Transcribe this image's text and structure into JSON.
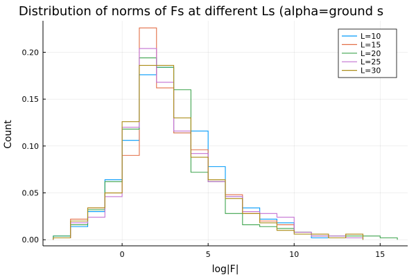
{
  "chart_data": {
    "type": "line",
    "subtype": "step-histogram",
    "title": "Distribution of norms of Fs at different Ls (alpha=ground s",
    "xlabel": "log|F|",
    "ylabel": "Count",
    "xlim": [
      -4.6,
      16.6
    ],
    "ylim": [
      -0.0065,
      0.2336
    ],
    "xticks": [
      0,
      5,
      10,
      15
    ],
    "xtick_labels": [
      "0",
      "5",
      "10",
      "15"
    ],
    "yticks": [
      0.0,
      0.05,
      0.1,
      0.15,
      0.2
    ],
    "ytick_labels": [
      "0.00",
      "0.05",
      "0.10",
      "0.15",
      "0.20"
    ],
    "grid": true,
    "legend_position": "top-right",
    "series": [
      {
        "name": "L=10",
        "color": "#009AFA",
        "x_start": -4,
        "bin_width": 1,
        "values": [
          0.004,
          0.014,
          0.03,
          0.064,
          0.106,
          0.176,
          0.184,
          0.114,
          0.116,
          0.078,
          0.046,
          0.034,
          0.022,
          0.018,
          0.008,
          0.002,
          0.002,
          0.002
        ]
      },
      {
        "name": "L=15",
        "color": "#E36F47",
        "x_start": -4,
        "bin_width": 1,
        "values": [
          0.002,
          0.022,
          0.034,
          0.05,
          0.09,
          0.226,
          0.162,
          0.114,
          0.096,
          0.064,
          0.048,
          0.028,
          0.02,
          0.016,
          0.008,
          0.006,
          0.002,
          0.006
        ]
      },
      {
        "name": "L=20",
        "color": "#3EA44E",
        "x_start": -4,
        "bin_width": 1,
        "values": [
          0.004,
          0.016,
          0.032,
          0.062,
          0.118,
          0.194,
          0.184,
          0.16,
          0.072,
          0.062,
          0.028,
          0.016,
          0.014,
          0.012,
          0.008,
          0.004,
          0.004,
          0.004,
          0.004,
          0.002
        ]
      },
      {
        "name": "L=25",
        "color": "#C371D2",
        "x_start": -4,
        "bin_width": 1,
        "values": [
          0.002,
          0.018,
          0.024,
          0.046,
          0.12,
          0.204,
          0.168,
          0.116,
          0.092,
          0.062,
          0.046,
          0.03,
          0.028,
          0.024,
          0.008,
          0.004,
          0.004,
          0.002
        ]
      },
      {
        "name": "L=30",
        "color": "#AC8D18",
        "x_start": -4,
        "bin_width": 1,
        "values": [
          0.002,
          0.02,
          0.034,
          0.05,
          0.126,
          0.186,
          0.186,
          0.13,
          0.088,
          0.064,
          0.044,
          0.028,
          0.018,
          0.01,
          0.006,
          0.006,
          0.002,
          0.006
        ]
      }
    ]
  }
}
